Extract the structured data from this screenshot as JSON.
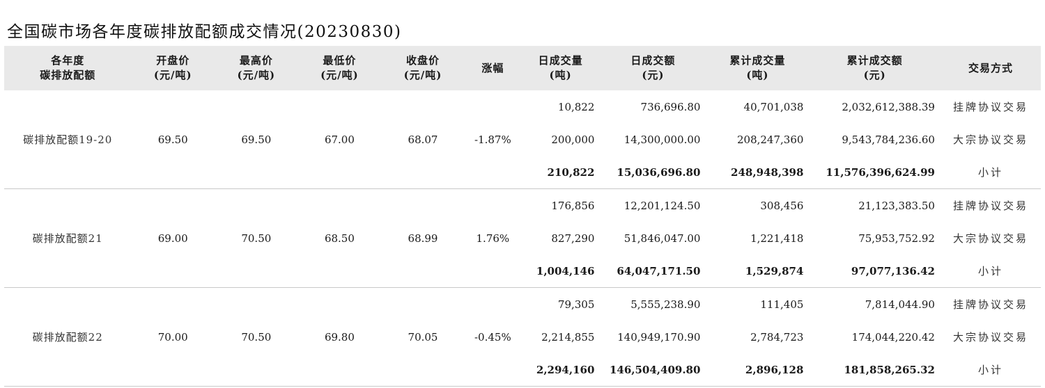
{
  "title": "全国碳市场各年度碳排放配额成交情况(20230830)",
  "headers": [
    {
      "line1": "各年度",
      "line2": "碳排放配额"
    },
    {
      "line1": "开盘价",
      "line2": "(元/吨)"
    },
    {
      "line1": "最高价",
      "line2": "(元/吨)"
    },
    {
      "line1": "最低价",
      "line2": "(元/吨)"
    },
    {
      "line1": "收盘价",
      "line2": "(元/吨)"
    },
    {
      "line1": "涨幅",
      "line2": ""
    },
    {
      "line1": "日成交量",
      "line2": "(吨)"
    },
    {
      "line1": "日成交额",
      "line2": "(元)"
    },
    {
      "line1": "累计成交量",
      "line2": "(吨)"
    },
    {
      "line1": "累计成交额",
      "line2": "(元)"
    },
    {
      "line1": "交易方式",
      "line2": ""
    }
  ],
  "groups": [
    {
      "name": "碳排放配额19-20",
      "open": "69.50",
      "high": "69.50",
      "low": "67.00",
      "close": "68.07",
      "change": "-1.87%",
      "rows": [
        {
          "vol": "10,822",
          "amt": "736,696.80",
          "cum_vol": "40,701,038",
          "cum_amt": "2,032,612,388.39",
          "method": "挂牌协议交易"
        },
        {
          "vol": "200,000",
          "amt": "14,300,000.00",
          "cum_vol": "208,247,360",
          "cum_amt": "9,543,784,236.60",
          "method": "大宗协议交易"
        },
        {
          "vol": "210,822",
          "amt": "15,036,696.80",
          "cum_vol": "248,948,398",
          "cum_amt": "11,576,396,624.99",
          "method": "小计"
        }
      ]
    },
    {
      "name": "碳排放配额21",
      "open": "69.00",
      "high": "70.50",
      "low": "68.50",
      "close": "68.99",
      "change": "1.76%",
      "rows": [
        {
          "vol": "176,856",
          "amt": "12,201,124.50",
          "cum_vol": "308,456",
          "cum_amt": "21,123,383.50",
          "method": "挂牌协议交易"
        },
        {
          "vol": "827,290",
          "amt": "51,846,047.00",
          "cum_vol": "1,221,418",
          "cum_amt": "75,953,752.92",
          "method": "大宗协议交易"
        },
        {
          "vol": "1,004,146",
          "amt": "64,047,171.50",
          "cum_vol": "1,529,874",
          "cum_amt": "97,077,136.42",
          "method": "小计"
        }
      ]
    },
    {
      "name": "碳排放配额22",
      "open": "70.00",
      "high": "70.50",
      "low": "69.80",
      "close": "70.05",
      "change": "-0.45%",
      "rows": [
        {
          "vol": "79,305",
          "amt": "5,555,238.90",
          "cum_vol": "111,405",
          "cum_amt": "7,814,044.90",
          "method": "挂牌协议交易"
        },
        {
          "vol": "2,214,855",
          "amt": "140,949,170.90",
          "cum_vol": "2,784,723",
          "cum_amt": "174,044,220.42",
          "method": "大宗协议交易"
        },
        {
          "vol": "2,294,160",
          "amt": "146,504,409.80",
          "cum_vol": "2,896,128",
          "cum_amt": "181,858,265.32",
          "method": "小计"
        }
      ]
    }
  ]
}
